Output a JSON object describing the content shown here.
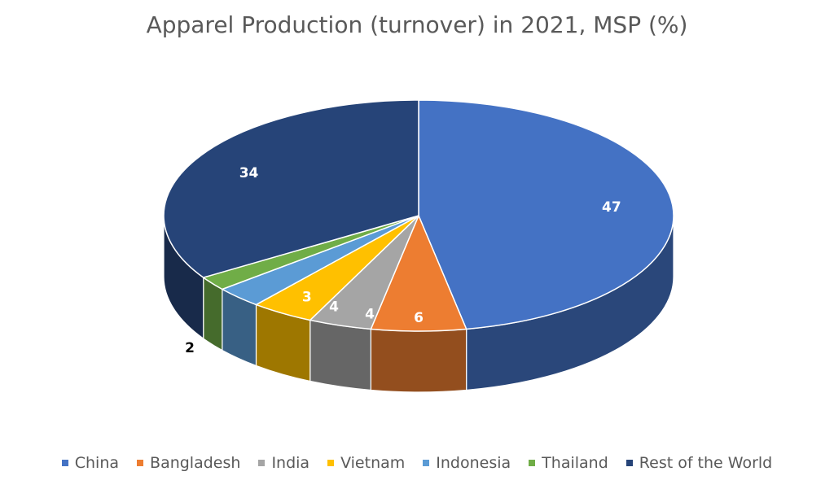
{
  "chart_data": {
    "type": "pie",
    "title": "Apparel Production (turnover) in 2021, MSP (%)",
    "slices": [
      {
        "label": "China",
        "value": 47,
        "value_label": "47",
        "color": "#4472C4"
      },
      {
        "label": "Bangladesh",
        "value": 6,
        "value_label": "6",
        "color": "#ED7D31"
      },
      {
        "label": "India",
        "value": 4,
        "value_label": "4",
        "color": "#A5A5A5"
      },
      {
        "label": "Vietnam",
        "value": 4,
        "value_label": "4",
        "color": "#FFC000"
      },
      {
        "label": "Indonesia",
        "value": 3,
        "value_label": "3",
        "color": "#5B9BD5"
      },
      {
        "label": "Thailand",
        "value": 2,
        "value_label": "2",
        "color": "#70AD47"
      },
      {
        "label": "Rest of the World",
        "value": 34,
        "value_label": "34",
        "color": "#264478"
      }
    ],
    "start_angle_deg": 90,
    "direction": "clockwise",
    "style": "3d-tilted",
    "legend_position": "bottom"
  }
}
